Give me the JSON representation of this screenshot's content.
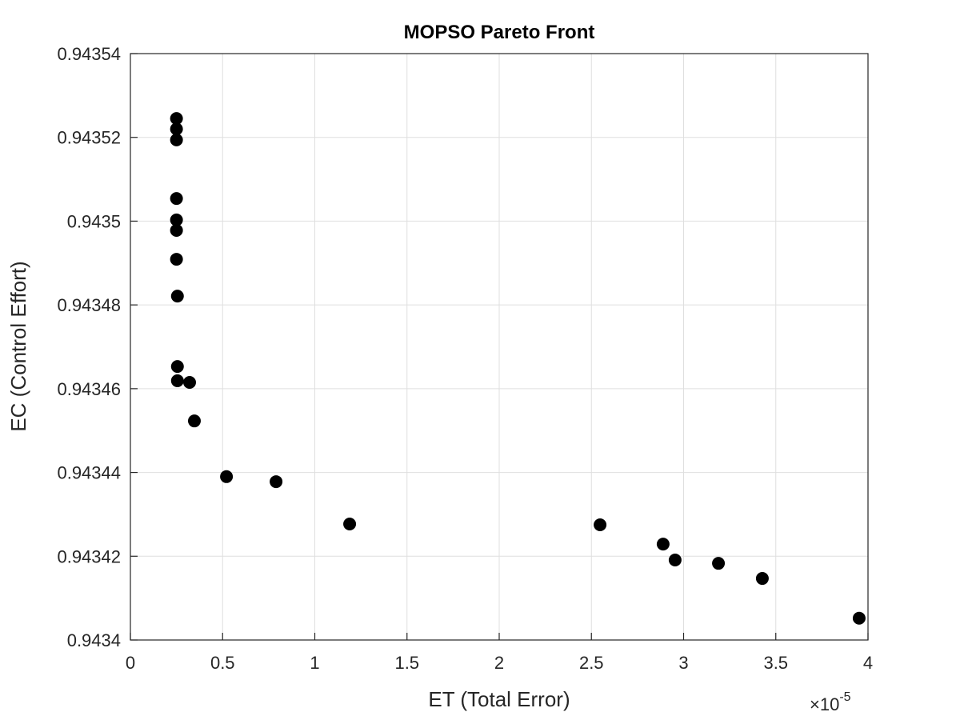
{
  "chart_data": {
    "type": "scatter",
    "title": "MOPSO Pareto Front",
    "xlabel": "ET (Total Error)",
    "ylabel": "EC (Control Effort)",
    "x_multiplier": {
      "base": "×10",
      "exponent": "-5"
    },
    "xlim": [
      0,
      4
    ],
    "ylim": [
      0.9434,
      0.94354
    ],
    "xticks": [
      0,
      0.5,
      1,
      1.5,
      2,
      2.5,
      3,
      3.5,
      4
    ],
    "yticks": [
      0.9434,
      0.94342,
      0.94344,
      0.94346,
      0.94348,
      0.9435,
      0.94352,
      0.94354
    ],
    "grid": true,
    "series": [
      {
        "color": "#000000",
        "x": [
          0.25,
          0.25,
          0.25,
          0.25,
          0.25,
          0.25,
          0.25,
          0.255,
          0.255,
          0.255,
          0.321,
          0.347,
          0.521,
          0.79,
          1.189,
          2.547,
          2.889,
          2.954,
          3.189,
          3.427,
          3.952
        ],
        "values": [
          0.9435245,
          0.943522,
          0.9435194,
          0.9435054,
          0.9435003,
          0.9434978,
          0.9434909,
          0.9434821,
          0.9434653,
          0.9434619,
          0.9434615,
          0.9434523,
          0.943439,
          0.9434378,
          0.9434277,
          0.9434275,
          0.9434229,
          0.9434191,
          0.9434183,
          0.9434147,
          0.9434052
        ]
      }
    ]
  }
}
